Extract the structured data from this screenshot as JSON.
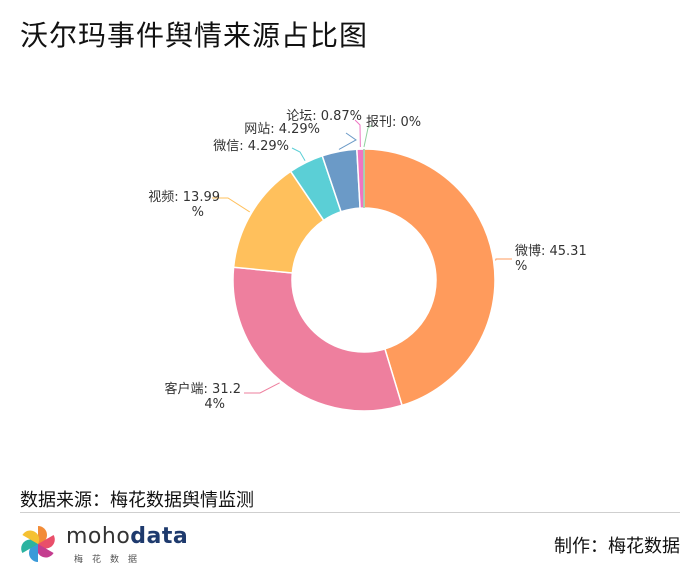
{
  "title": "沃尔玛事件舆情来源占比图",
  "source": "数据来源：梅花数据舆情监测",
  "maker": "制作：梅花数据",
  "logo": {
    "word_a": "moho",
    "word_b": "data",
    "sub": "梅花数据"
  },
  "chart_data": {
    "type": "pie",
    "donut": true,
    "title": "沃尔玛事件舆情来源占比图",
    "slices": [
      {
        "name": "微博",
        "value": 45.31,
        "color": "#ff9b5c",
        "label": [
          "微博: 45.31",
          "%"
        ]
      },
      {
        "name": "客户端",
        "value": 31.24,
        "color": "#ee7f9e",
        "label": [
          "客户端: 31.2",
          "4%"
        ]
      },
      {
        "name": "视频",
        "value": 13.99,
        "color": "#ffc05c",
        "label": [
          "视频: 13.99",
          "%"
        ]
      },
      {
        "name": "微信",
        "value": 4.29,
        "color": "#5bcfd6",
        "label": [
          "微信: 4.29%"
        ]
      },
      {
        "name": "网站",
        "value": 4.29,
        "color": "#6b9ac7",
        "label": [
          "网站: 4.29%"
        ]
      },
      {
        "name": "论坛",
        "value": 0.87,
        "color": "#ee76c3",
        "label": [
          "论坛: 0.87%"
        ]
      },
      {
        "name": "报刊",
        "value": 0,
        "color": "#8fd19e",
        "label": [
          "报刊: 0%"
        ]
      }
    ]
  }
}
